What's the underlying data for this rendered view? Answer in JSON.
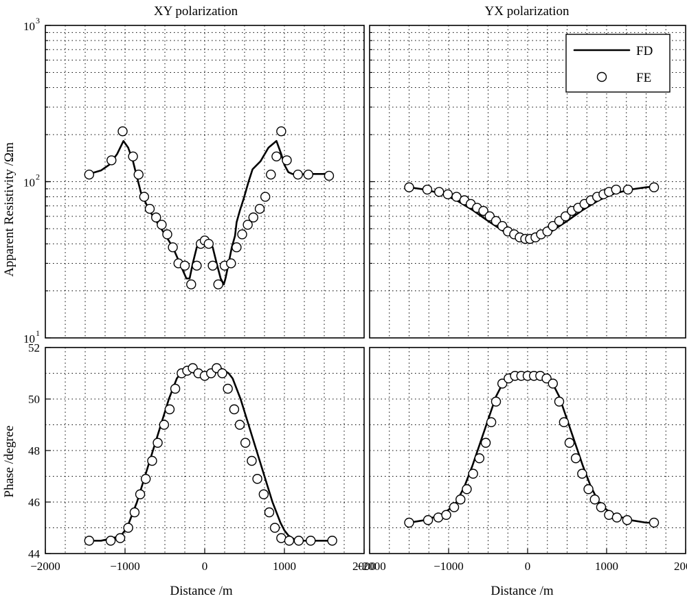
{
  "chart_data": [
    {
      "type": "line",
      "title": "XY polarization",
      "xlabel": "",
      "ylabel": "Apparent Resistivity /Ωm",
      "yscale": "log",
      "xlim": [
        -2000,
        2000
      ],
      "ylim": [
        10,
        1000
      ],
      "yticks": [
        {
          "value": 10,
          "base": "10",
          "exp": "1"
        },
        {
          "value": 100,
          "base": "10",
          "exp": "2"
        },
        {
          "value": 1000,
          "base": "10",
          "exp": "3"
        }
      ],
      "grid": true,
      "series": [
        {
          "name": "FD",
          "style": "solid line",
          "x": [
            -1450,
            -1300,
            -1200,
            -1100,
            -1020,
            -960,
            -900,
            -860,
            -800,
            -700,
            -600,
            -500,
            -400,
            -300,
            -230,
            -190,
            -150,
            -100,
            -50,
            0,
            50,
            100,
            150,
            200,
            240,
            260,
            300,
            340,
            380,
            400,
            440,
            490,
            550,
            600,
            700,
            800,
            900,
            960,
            1000,
            1050,
            1100,
            1150,
            1180,
            1250,
            1350,
            1450,
            1550,
            1600
          ],
          "y": [
            112,
            118,
            128,
            150,
            182,
            165,
            135,
            112,
            85,
            66,
            55,
            46,
            38,
            29,
            24,
            24,
            30,
            38,
            41,
            40,
            41,
            38,
            30,
            24,
            22,
            24,
            30,
            38,
            45,
            55,
            65,
            78,
            100,
            120,
            135,
            165,
            182,
            150,
            128,
            115,
            112,
            112,
            110,
            112,
            112,
            112,
            112,
            110
          ]
        },
        {
          "name": "FE",
          "style": "open circles",
          "x": [
            -1450,
            -1170,
            -1030,
            -900,
            -830,
            -760,
            -690,
            -610,
            -540,
            -470,
            -400,
            -330,
            -250,
            -170,
            -100,
            -50,
            0,
            50,
            100,
            170,
            250,
            330,
            400,
            470,
            540,
            610,
            690,
            760,
            830,
            900,
            960,
            1030,
            1170,
            1300,
            1560
          ],
          "y": [
            111,
            137,
            210,
            145,
            111,
            80,
            67,
            59,
            53,
            46,
            38,
            30,
            29,
            22,
            29,
            40,
            42,
            40,
            29,
            22,
            29,
            30,
            38,
            46,
            53,
            59,
            67,
            80,
            111,
            145,
            210,
            137,
            111,
            111,
            109
          ]
        }
      ]
    },
    {
      "type": "line",
      "title": "YX polarization",
      "xlabel": "",
      "ylabel": "",
      "yscale": "log",
      "xlim": [
        -2000,
        2000
      ],
      "ylim": [
        10,
        1000
      ],
      "grid": true,
      "legend": {
        "position": "top-right",
        "entries": [
          "FD",
          "FE"
        ]
      },
      "series": [
        {
          "name": "FD",
          "style": "solid line",
          "x": [
            -1500,
            -1300,
            -1100,
            -900,
            -700,
            -500,
            -300,
            -100,
            0,
            100,
            300,
            500,
            700,
            900,
            1100,
            1300,
            1500,
            1600
          ],
          "y": [
            92,
            89,
            84,
            76,
            66,
            56,
            48,
            43,
            42,
            43,
            48,
            56,
            66,
            76,
            84,
            89,
            92,
            93
          ]
        },
        {
          "name": "FE",
          "style": "open circles",
          "x": [
            -1500,
            -1270,
            -1120,
            -1010,
            -900,
            -800,
            -720,
            -640,
            -560,
            -480,
            -400,
            -320,
            -250,
            -170,
            -100,
            -30,
            30,
            100,
            170,
            250,
            320,
            400,
            480,
            560,
            640,
            720,
            800,
            880,
            960,
            1030,
            1120,
            1270,
            1600
          ],
          "y": [
            92,
            89,
            86,
            83,
            80,
            76,
            72,
            68,
            65,
            60,
            56,
            52,
            48,
            46,
            44,
            43,
            43,
            44,
            46,
            48,
            52,
            56,
            60,
            65,
            68,
            72,
            76,
            80,
            83,
            86,
            89,
            89,
            92
          ]
        }
      ]
    },
    {
      "type": "line",
      "title": "",
      "xlabel": "Distance /m",
      "ylabel": "Phase /degree",
      "xlim": [
        -2000,
        2000
      ],
      "ylim": [
        44,
        52
      ],
      "xticks": [
        -2000,
        -1000,
        0,
        1000,
        2000
      ],
      "yticks": [
        44,
        46,
        48,
        50,
        52
      ],
      "grid": true,
      "series": [
        {
          "name": "FD",
          "style": "solid line",
          "x": [
            -1450,
            -1300,
            -1150,
            -1050,
            -1000,
            -950,
            -900,
            -850,
            -800,
            -750,
            -700,
            -650,
            -600,
            -550,
            -500,
            -450,
            -400,
            -350,
            -300,
            -250,
            -200,
            -150,
            -100,
            -50,
            0,
            50,
            100,
            150,
            200,
            250,
            300,
            350,
            400,
            450,
            500,
            550,
            600,
            650,
            700,
            750,
            800,
            850,
            900,
            950,
            1000,
            1050,
            1100,
            1150,
            1300,
            1450,
            1600
          ],
          "y": [
            44.5,
            44.5,
            44.6,
            44.7,
            44.9,
            45.2,
            45.6,
            46.0,
            46.5,
            47.0,
            47.5,
            48.0,
            48.5,
            49.0,
            49.5,
            50.0,
            50.4,
            50.8,
            51.0,
            51.1,
            51.2,
            51.1,
            51.0,
            51.0,
            51.0,
            51.0,
            51.0,
            51.1,
            51.2,
            51.1,
            51.0,
            50.8,
            50.4,
            50.0,
            49.5,
            49.0,
            48.5,
            48.0,
            47.5,
            47.0,
            46.5,
            46.0,
            45.6,
            45.2,
            44.9,
            44.7,
            44.6,
            44.5,
            44.5,
            44.5,
            44.5
          ]
        },
        {
          "name": "FE",
          "style": "open circles",
          "x": [
            -1450,
            -1180,
            -1060,
            -960,
            -880,
            -810,
            -740,
            -660,
            -590,
            -510,
            -440,
            -370,
            -290,
            -220,
            -150,
            -80,
            0,
            80,
            150,
            220,
            290,
            370,
            440,
            510,
            590,
            660,
            740,
            810,
            880,
            960,
            1060,
            1180,
            1330,
            1600
          ],
          "y": [
            44.5,
            44.5,
            44.6,
            45.0,
            45.6,
            46.3,
            46.9,
            47.6,
            48.3,
            49.0,
            49.6,
            50.4,
            51.0,
            51.1,
            51.2,
            51.0,
            50.9,
            51.0,
            51.2,
            51.0,
            50.4,
            49.6,
            49.0,
            48.3,
            47.6,
            46.9,
            46.3,
            45.6,
            45.0,
            44.6,
            44.5,
            44.5,
            44.5,
            44.5
          ]
        }
      ]
    },
    {
      "type": "line",
      "title": "",
      "xlabel": "Distance /m",
      "ylabel": "",
      "xlim": [
        -2000,
        2000
      ],
      "ylim": [
        44,
        52
      ],
      "xticks": [
        -2000,
        -1000,
        0,
        1000,
        2000
      ],
      "grid": true,
      "series": [
        {
          "name": "FD",
          "style": "solid line",
          "x": [
            -1500,
            -1300,
            -1100,
            -1000,
            -900,
            -800,
            -700,
            -600,
            -500,
            -400,
            -300,
            -200,
            -100,
            0,
            100,
            200,
            300,
            400,
            500,
            600,
            700,
            800,
            900,
            1000,
            1100,
            1300,
            1500,
            1600
          ],
          "y": [
            45.2,
            45.3,
            45.5,
            45.7,
            46.0,
            46.6,
            47.4,
            48.3,
            49.2,
            50.1,
            50.7,
            50.9,
            50.9,
            50.9,
            50.9,
            50.9,
            50.7,
            50.1,
            49.2,
            48.3,
            47.4,
            46.6,
            46.0,
            45.7,
            45.5,
            45.3,
            45.2,
            45.2
          ]
        },
        {
          "name": "FE",
          "style": "open circles",
          "x": [
            -1500,
            -1260,
            -1130,
            -1030,
            -930,
            -850,
            -770,
            -690,
            -610,
            -530,
            -460,
            -400,
            -320,
            -240,
            -160,
            -80,
            0,
            80,
            160,
            240,
            320,
            400,
            460,
            530,
            610,
            690,
            770,
            850,
            930,
            1030,
            1130,
            1260,
            1600
          ],
          "y": [
            45.2,
            45.3,
            45.4,
            45.5,
            45.8,
            46.1,
            46.5,
            47.1,
            47.7,
            48.3,
            49.1,
            49.9,
            50.6,
            50.8,
            50.9,
            50.9,
            50.9,
            50.9,
            50.9,
            50.8,
            50.6,
            49.9,
            49.1,
            48.3,
            47.7,
            47.1,
            46.5,
            46.1,
            45.8,
            45.5,
            45.4,
            45.3,
            45.2
          ]
        }
      ]
    }
  ]
}
